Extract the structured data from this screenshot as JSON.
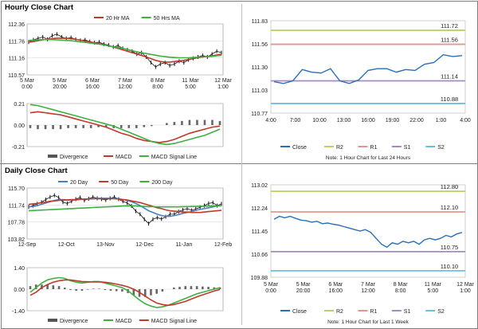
{
  "hourly_title": "Hourly Close Chart",
  "daily_title": "Daily Close Chart",
  "chart_data": [
    {
      "id": "hourly-price",
      "type": "line",
      "legend": [
        "20 Hr MA",
        "50 Hrs MA"
      ],
      "legend_colors": [
        "#c0392b",
        "#3cb043"
      ],
      "y_ticks": [
        "112.36",
        "111.76",
        "111.16",
        "110.57"
      ],
      "ylim": [
        110.57,
        112.36
      ],
      "x_labels": [
        "5 Mar\n0:00",
        "5 Mar\n20:00",
        "6 Mar\n16:00",
        "7 Mar\n12:00",
        "8 Mar\n8:00",
        "11 Mar\n5:00",
        "12 Mar\n1:00"
      ],
      "close": [
        111.72,
        111.8,
        111.85,
        111.9,
        111.82,
        111.95,
        112.0,
        111.9,
        111.85,
        111.88,
        111.82,
        111.78,
        111.8,
        111.74,
        111.7,
        111.72,
        111.65,
        111.62,
        111.55,
        111.6,
        111.5,
        111.45,
        111.4,
        111.3,
        111.35,
        111.2,
        111.0,
        110.85,
        110.95,
        111.0,
        110.9,
        110.95,
        111.05,
        111.0,
        111.1,
        111.15,
        111.2,
        111.25,
        111.2,
        111.3,
        111.4,
        111.35
      ],
      "ma20": [
        111.72,
        111.74,
        111.77,
        111.8,
        111.82,
        111.84,
        111.86,
        111.86,
        111.85,
        111.84,
        111.82,
        111.79,
        111.76,
        111.73,
        111.7,
        111.67,
        111.63,
        111.59,
        111.55,
        111.5,
        111.45,
        111.4,
        111.35,
        111.3,
        111.25,
        111.2,
        111.14,
        111.08,
        111.04,
        111.02,
        111.02,
        111.04,
        111.06,
        111.08,
        111.11,
        111.14,
        111.17,
        111.2,
        111.22,
        111.24,
        111.27,
        111.3
      ],
      "ma50": [
        111.78,
        111.79,
        111.8,
        111.81,
        111.81,
        111.81,
        111.8,
        111.79,
        111.78,
        111.77,
        111.75,
        111.73,
        111.71,
        111.69,
        111.67,
        111.65,
        111.62,
        111.59,
        111.56,
        111.53,
        111.5,
        111.46,
        111.42,
        111.38,
        111.35,
        111.32,
        111.29,
        111.26,
        111.23,
        111.21,
        111.19,
        111.18,
        111.17,
        111.17,
        111.17,
        111.18,
        111.19,
        111.2,
        111.21,
        111.22,
        111.24,
        111.26
      ]
    },
    {
      "id": "hourly-macd",
      "type": "line",
      "legend": [
        "Divergence",
        "MACD",
        "MACD Signal Line"
      ],
      "legend_colors": [
        "#555555",
        "#c0392b",
        "#3cb043"
      ],
      "y_ticks": [
        "0.21",
        "0.00",
        "-0.21"
      ],
      "ylim": [
        -0.21,
        0.21
      ],
      "macd": [
        0.12,
        0.13,
        0.12,
        0.11,
        0.1,
        0.08,
        0.06,
        0.04,
        0.02,
        0.0,
        -0.02,
        -0.05,
        -0.08,
        -0.1,
        -0.13,
        -0.15,
        -0.16,
        -0.17,
        -0.16,
        -0.14,
        -0.11,
        -0.08,
        -0.06,
        -0.04,
        -0.02,
        -0.01
      ],
      "signal": [
        0.2,
        0.19,
        0.17,
        0.15,
        0.13,
        0.11,
        0.09,
        0.07,
        0.05,
        0.03,
        0.01,
        -0.01,
        -0.04,
        -0.07,
        -0.1,
        -0.13,
        -0.16,
        -0.18,
        -0.19,
        -0.18,
        -0.16,
        -0.14,
        -0.12,
        -0.1,
        -0.07,
        -0.04
      ],
      "divergence": [
        -0.03,
        -0.04,
        -0.04,
        -0.04,
        -0.04,
        -0.03,
        -0.03,
        -0.03,
        -0.03,
        -0.02,
        -0.02,
        -0.03,
        -0.03,
        -0.03,
        -0.03,
        -0.02,
        -0.01,
        0.0,
        0.02,
        0.03,
        0.04,
        0.05,
        0.05,
        0.05,
        0.05,
        0.04
      ]
    },
    {
      "id": "hourly-pivot",
      "type": "line",
      "y_ticks": [
        "111.83",
        "111.56",
        "111.30",
        "111.03",
        "110.77"
      ],
      "ylim": [
        110.77,
        111.83
      ],
      "x_labels": [
        "4:00",
        "7:00",
        "10:00",
        "13:00",
        "16:00",
        "19:00",
        "22:00",
        "1:00",
        "4:00"
      ],
      "close": [
        111.13,
        111.11,
        111.14,
        111.27,
        111.24,
        111.23,
        111.28,
        111.14,
        111.11,
        111.15,
        111.26,
        111.28,
        111.28,
        111.24,
        111.27,
        111.26,
        111.33,
        111.35,
        111.44,
        111.42,
        111.43
      ],
      "levels": [
        {
          "name": "R2",
          "value": 111.72,
          "label": "111.72",
          "color": "#b5d36a"
        },
        {
          "name": "R1",
          "value": 111.56,
          "label": "111.56",
          "color": "#e6948f"
        },
        {
          "name": "S1",
          "value": 111.14,
          "label": "111.14",
          "color": "#a78bbf"
        },
        {
          "name": "S2",
          "value": 110.88,
          "label": "110.88",
          "color": "#6cc0dd"
        }
      ],
      "legend": [
        "Close",
        "R2",
        "R1",
        "S1",
        "S2"
      ],
      "note": "Note: 1 Hour Chart for Last 24 Hours"
    },
    {
      "id": "daily-price",
      "type": "line",
      "legend": [
        "20 Day",
        "50 Day",
        "200 Day"
      ],
      "legend_colors": [
        "#4a7fc1",
        "#c0392b",
        "#3cb043"
      ],
      "y_ticks": [
        "115.70",
        "111.74",
        "107.78",
        "103.82"
      ],
      "ylim": [
        103.82,
        115.7
      ],
      "x_labels": [
        "12-Sep",
        "12-Oct",
        "13-Nov",
        "12-Dec",
        "11-Jan",
        "12-Feb"
      ],
      "close": [
        111.3,
        111.6,
        112.0,
        112.4,
        113.0,
        113.6,
        114.0,
        113.5,
        112.4,
        112.1,
        112.6,
        113.1,
        113.5,
        112.8,
        113.2,
        113.6,
        113.3,
        113.1,
        112.9,
        113.3,
        113.6,
        113.1,
        112.6,
        112.2,
        111.5,
        110.3,
        109.6,
        108.4,
        107.4,
        108.4,
        108.8,
        108.5,
        109.0,
        109.6,
        109.6,
        110.2,
        110.6,
        110.9,
        110.5,
        110.8,
        111.2,
        111.6,
        112.1,
        112.3,
        111.6,
        112.0
      ],
      "ma20": [
        111.3,
        111.4,
        111.6,
        111.9,
        112.2,
        112.5,
        112.8,
        113.0,
        113.0,
        112.9,
        112.9,
        112.9,
        113.0,
        113.1,
        113.1,
        113.2,
        113.3,
        113.3,
        113.3,
        113.3,
        113.3,
        113.2,
        113.0,
        112.8,
        112.5,
        112.1,
        111.6,
        111.0,
        110.4,
        110.0,
        109.6,
        109.3,
        109.1,
        109.1,
        109.3,
        109.5,
        109.8,
        110.0,
        110.2,
        110.5,
        110.7,
        110.9,
        111.1,
        111.3,
        111.5,
        111.6
      ],
      "ma50": [
        111.9,
        112.0,
        112.1,
        112.3,
        112.4,
        112.6,
        112.7,
        112.8,
        112.9,
        112.9,
        113.0,
        113.0,
        113.1,
        113.1,
        113.2,
        113.2,
        113.2,
        113.2,
        113.2,
        113.2,
        113.2,
        113.1,
        113.0,
        112.9,
        112.7,
        112.5,
        112.3,
        112.0,
        111.7,
        111.4,
        111.1,
        110.9,
        110.6,
        110.4,
        110.3,
        110.2,
        110.1,
        110.1,
        110.0,
        110.0,
        110.0,
        110.1,
        110.2,
        110.3,
        110.4,
        110.5
      ],
      "ma200": [
        110.4,
        110.45,
        110.5,
        110.55,
        110.6,
        110.65,
        110.7,
        110.75,
        110.8,
        110.85,
        110.9,
        110.95,
        111.0,
        111.05,
        111.1,
        111.15,
        111.2,
        111.25,
        111.3,
        111.35,
        111.4,
        111.45,
        111.5,
        111.5,
        111.5,
        111.5,
        111.45,
        111.4,
        111.35,
        111.35,
        111.3,
        111.3,
        111.3,
        111.3,
        111.3,
        111.3,
        111.35,
        111.35,
        111.4,
        111.4,
        111.45,
        111.45,
        111.5,
        111.5,
        111.55,
        111.55
      ]
    },
    {
      "id": "daily-macd",
      "type": "line",
      "legend": [
        "Divergence",
        "MACD",
        "MACD Signal Line"
      ],
      "legend_colors": [
        "#555555",
        "#3cb043",
        "#c0392b"
      ],
      "y_ticks": [
        "1.40",
        "0.00",
        "-1.40"
      ],
      "ylim": [
        -1.4,
        1.4
      ],
      "macd": [
        -0.2,
        0.1,
        0.4,
        0.6,
        0.7,
        0.75,
        0.7,
        0.55,
        0.45,
        0.4,
        0.45,
        0.5,
        0.5,
        0.4,
        0.3,
        0.2,
        0.1,
        -0.1,
        -0.4,
        -0.7,
        -0.95,
        -1.1,
        -1.2,
        -1.15,
        -1.05,
        -0.9,
        -0.75,
        -0.6,
        -0.45,
        -0.3,
        -0.2,
        -0.1,
        0.0,
        0.1
      ],
      "signal": [
        -0.4,
        -0.2,
        0.1,
        0.3,
        0.45,
        0.55,
        0.6,
        0.6,
        0.55,
        0.5,
        0.48,
        0.47,
        0.47,
        0.45,
        0.4,
        0.33,
        0.25,
        0.15,
        0.0,
        -0.2,
        -0.45,
        -0.7,
        -0.9,
        -1.0,
        -1.05,
        -1.0,
        -0.9,
        -0.8,
        -0.65,
        -0.5,
        -0.37,
        -0.25,
        -0.12,
        -0.02
      ],
      "divergence": [
        0.2,
        0.3,
        0.3,
        0.3,
        0.25,
        0.2,
        0.1,
        -0.05,
        -0.1,
        -0.1,
        -0.03,
        0.03,
        0.03,
        -0.05,
        -0.1,
        -0.13,
        -0.15,
        -0.25,
        -0.4,
        -0.5,
        -0.5,
        -0.4,
        -0.3,
        -0.15,
        0.0,
        0.1,
        0.15,
        0.2,
        0.2,
        0.2,
        0.17,
        0.15,
        0.12,
        0.12
      ]
    },
    {
      "id": "daily-pivot",
      "type": "line",
      "y_ticks": [
        "113.02",
        "112.24",
        "111.45",
        "110.66",
        "109.88"
      ],
      "ylim": [
        109.88,
        113.02
      ],
      "x_labels": [
        "5 Mar\n0:00",
        "5 Mar\n20:00",
        "6 Mar\n16:00",
        "7 Mar\n12:00",
        "8 Mar\n8:00",
        "11 Mar\n5:00",
        "12 Mar\n1:00"
      ],
      "close": [
        111.85,
        111.95,
        111.9,
        111.95,
        111.88,
        111.82,
        111.8,
        111.75,
        111.78,
        111.7,
        111.72,
        111.68,
        111.65,
        111.6,
        111.55,
        111.5,
        111.45,
        111.5,
        111.4,
        111.2,
        111.0,
        110.9,
        111.05,
        111.0,
        111.1,
        111.05,
        111.1,
        111.0,
        111.15,
        111.2,
        111.15,
        111.2,
        111.3,
        111.25,
        111.35,
        111.4
      ],
      "levels": [
        {
          "name": "R2",
          "value": 112.8,
          "label": "112.80",
          "color": "#b5d36a"
        },
        {
          "name": "R1",
          "value": 112.1,
          "label": "112.10",
          "color": "#e6948f"
        },
        {
          "name": "S1",
          "value": 110.75,
          "label": "110.75",
          "color": "#a78bbf"
        },
        {
          "name": "S2",
          "value": 110.1,
          "label": "110.10",
          "color": "#6cc0dd"
        }
      ],
      "legend": [
        "Close",
        "R2",
        "R1",
        "S1",
        "S2"
      ],
      "note": "Note: 1 Hour Chart for Last 1 Week"
    }
  ]
}
